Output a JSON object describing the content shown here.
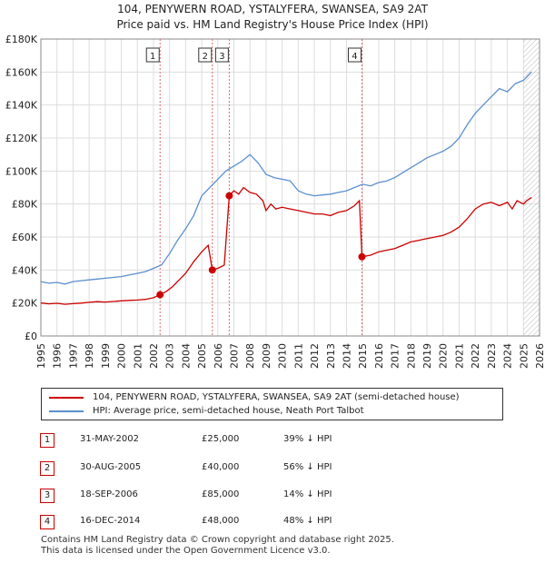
{
  "title_line1": "104, PENYWERN ROAD, YSTALYFERA, SWANSEA, SA9 2AT",
  "title_line2": "Price paid vs. HM Land Registry's House Price Index (HPI)",
  "legend": {
    "series1": "104, PENYWERN ROAD, YSTALYFERA, SWANSEA, SA9 2AT (semi-detached house)",
    "series2": "HPI: Average price, semi-detached house, Neath Port Talbot"
  },
  "colors": {
    "property": "#cc0000",
    "hpi": "#5b8fd0",
    "marker_line": "#e06666",
    "grid": "#dddddd"
  },
  "transactions": [
    {
      "num": "1",
      "date": "31-MAY-2002",
      "price": "£25,000",
      "hpi": "39% ↓ HPI"
    },
    {
      "num": "2",
      "date": "30-AUG-2005",
      "price": "£40,000",
      "hpi": "56% ↓ HPI"
    },
    {
      "num": "3",
      "date": "18-SEP-2006",
      "price": "£85,000",
      "hpi": "14% ↓ HPI"
    },
    {
      "num": "4",
      "date": "16-DEC-2014",
      "price": "£48,000",
      "hpi": "48% ↓ HPI"
    }
  ],
  "footer_line1": "Contains HM Land Registry data © Crown copyright and database right 2025.",
  "footer_line2": "This data is licensed under the Open Government Licence v3.0.",
  "chart_data": {
    "type": "line",
    "title": "104, PENYWERN ROAD, YSTALYFERA, SWANSEA, SA9 2AT",
    "subtitle": "Price paid vs. HM Land Registry's House Price Index (HPI)",
    "xlabel": "",
    "ylabel": "",
    "xlim": [
      1995,
      2026
    ],
    "ylim": [
      0,
      180000
    ],
    "grid": true,
    "x_ticks": [
      1995,
      1996,
      1997,
      1998,
      1999,
      2000,
      2001,
      2002,
      2003,
      2004,
      2005,
      2006,
      2007,
      2008,
      2009,
      2010,
      2011,
      2012,
      2013,
      2014,
      2015,
      2016,
      2017,
      2018,
      2019,
      2020,
      2021,
      2022,
      2023,
      2024,
      2025,
      2026
    ],
    "y_ticks": [
      {
        "value": 0,
        "label": "£0"
      },
      {
        "value": 20000,
        "label": "£20K"
      },
      {
        "value": 40000,
        "label": "£40K"
      },
      {
        "value": 60000,
        "label": "£60K"
      },
      {
        "value": 80000,
        "label": "£80K"
      },
      {
        "value": 100000,
        "label": "£100K"
      },
      {
        "value": 120000,
        "label": "£120K"
      },
      {
        "value": 140000,
        "label": "£140K"
      },
      {
        "value": 160000,
        "label": "£160K"
      },
      {
        "value": 180000,
        "label": "£180K"
      }
    ],
    "projection_start": 2025.0,
    "sales": [
      {
        "label": "1",
        "x": 2002.41,
        "y": 25000
      },
      {
        "label": "2",
        "x": 2005.66,
        "y": 40000
      },
      {
        "label": "3",
        "x": 2006.71,
        "y": 85000
      },
      {
        "label": "4",
        "x": 2014.96,
        "y": 48000
      }
    ],
    "series": [
      {
        "name": "104, PENYWERN ROAD, YSTALYFERA, SWANSEA, SA9 2AT (semi-detached house)",
        "x": [
          1995.0,
          1995.5,
          1996.0,
          1996.5,
          1997.0,
          1997.5,
          1998.0,
          1998.5,
          1999.0,
          1999.5,
          2000.0,
          2000.5,
          2001.0,
          2001.5,
          2002.0,
          2002.41,
          2002.8,
          2003.2,
          2003.6,
          2004.0,
          2004.5,
          2005.0,
          2005.4,
          2005.66,
          2006.0,
          2006.4,
          2006.71,
          2007.0,
          2007.3,
          2007.6,
          2008.0,
          2008.4,
          2008.8,
          2009.0,
          2009.3,
          2009.6,
          2010.0,
          2010.5,
          2011.0,
          2011.5,
          2012.0,
          2012.5,
          2013.0,
          2013.5,
          2014.0,
          2014.5,
          2014.8,
          2014.96,
          2015.5,
          2016.0,
          2016.5,
          2017.0,
          2017.5,
          2018.0,
          2018.5,
          2019.0,
          2019.5,
          2020.0,
          2020.5,
          2021.0,
          2021.5,
          2022.0,
          2022.5,
          2023.0,
          2023.5,
          2024.0,
          2024.3,
          2024.6,
          2025.0,
          2025.2,
          2025.5
        ],
        "y": [
          20000,
          19500,
          19800,
          19200,
          19600,
          19900,
          20400,
          20800,
          20600,
          20900,
          21300,
          21600,
          21800,
          22200,
          23200,
          25000,
          27000,
          30000,
          34000,
          38000,
          45000,
          51000,
          55000,
          40000,
          41000,
          43000,
          85000,
          88000,
          86000,
          90000,
          87000,
          86000,
          82000,
          76000,
          80000,
          77000,
          78000,
          77000,
          76000,
          75000,
          74000,
          74000,
          73000,
          75000,
          76000,
          79000,
          82000,
          48000,
          49000,
          51000,
          52000,
          53000,
          55000,
          57000,
          58000,
          59000,
          60000,
          61000,
          63000,
          66000,
          71000,
          77000,
          80000,
          81000,
          79000,
          81000,
          77000,
          82000,
          80000,
          82000,
          84000
        ]
      },
      {
        "name": "HPI: Average price, semi-detached house, Neath Port Talbot",
        "x": [
          1995.0,
          1995.5,
          1996.0,
          1996.5,
          1997.0,
          1997.5,
          1998.0,
          1998.5,
          1999.0,
          1999.5,
          2000.0,
          2000.5,
          2001.0,
          2001.5,
          2002.0,
          2002.5,
          2003.0,
          2003.5,
          2004.0,
          2004.5,
          2005.0,
          2005.5,
          2006.0,
          2006.5,
          2007.0,
          2007.5,
          2008.0,
          2008.5,
          2009.0,
          2009.5,
          2010.0,
          2010.5,
          2011.0,
          2011.5,
          2012.0,
          2012.5,
          2013.0,
          2013.5,
          2014.0,
          2014.5,
          2015.0,
          2015.5,
          2016.0,
          2016.5,
          2017.0,
          2017.5,
          2018.0,
          2018.5,
          2019.0,
          2019.5,
          2020.0,
          2020.5,
          2021.0,
          2021.5,
          2022.0,
          2022.5,
          2023.0,
          2023.5,
          2024.0,
          2024.5,
          2025.0,
          2025.3,
          2025.5
        ],
        "y": [
          33000,
          32000,
          32500,
          31500,
          33000,
          33500,
          34000,
          34500,
          35000,
          35500,
          36000,
          37000,
          38000,
          39000,
          41000,
          43000,
          50000,
          58000,
          65000,
          73000,
          85000,
          90000,
          95000,
          100000,
          103000,
          106000,
          110000,
          105000,
          98000,
          96000,
          95000,
          94000,
          88000,
          86000,
          85000,
          85500,
          86000,
          87000,
          88000,
          90000,
          92000,
          91000,
          93000,
          94000,
          96000,
          99000,
          102000,
          105000,
          108000,
          110000,
          112000,
          115000,
          120000,
          128000,
          135000,
          140000,
          145000,
          150000,
          148000,
          153000,
          155000,
          158000,
          160000
        ]
      }
    ]
  }
}
